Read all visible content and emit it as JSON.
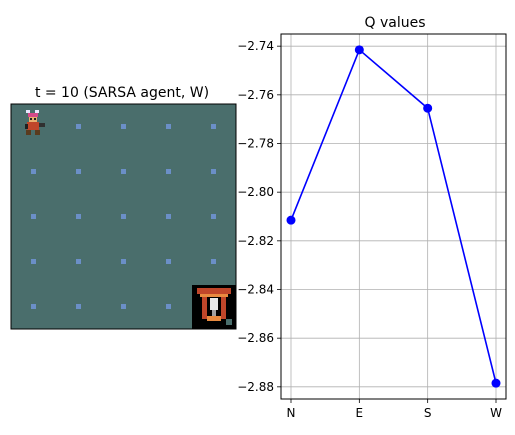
{
  "grid_panel": {
    "title": "t = 10 (SARSA agent, W)",
    "rows": 5,
    "cols": 5,
    "background_color": "#4a6e6c",
    "dot_color": "#6b8fc7",
    "agent": {
      "icon": "viking-agent-icon",
      "row": 0,
      "col": 0
    },
    "goal": {
      "icon": "goal-shrine-icon",
      "row": 4,
      "col": 4
    }
  },
  "chart_data": {
    "type": "line",
    "title": "Q values",
    "categories": [
      "N",
      "E",
      "S",
      "W"
    ],
    "values": [
      -2.8115,
      -2.7415,
      -2.7655,
      -2.8785
    ],
    "ylim": [
      -2.885,
      -2.735
    ],
    "yticks": [
      -2.74,
      -2.76,
      -2.78,
      -2.8,
      -2.82,
      -2.84,
      -2.86,
      -2.88
    ],
    "ytick_labels": [
      "−2.74",
      "−2.76",
      "−2.78",
      "−2.80",
      "−2.82",
      "−2.84",
      "−2.86",
      "−2.88"
    ],
    "xlabel": "",
    "ylabel": "",
    "grid": true,
    "line_color": "#0000ff",
    "marker": "circle"
  }
}
